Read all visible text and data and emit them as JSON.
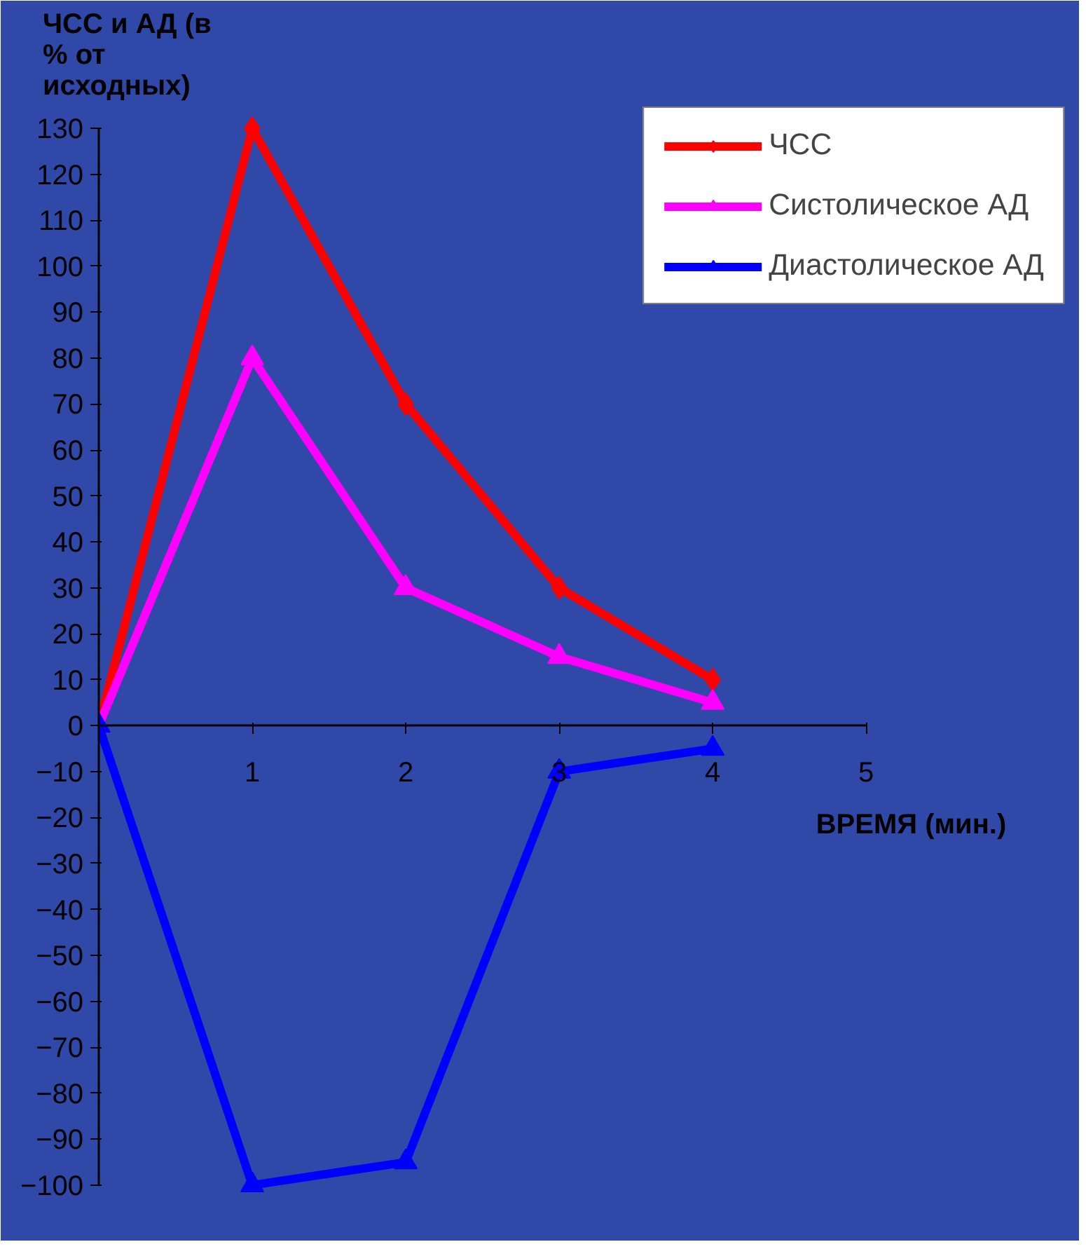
{
  "chart_data": {
    "type": "line",
    "ylabel": "ЧСС и АД (в % от исходных)",
    "xlabel": "ВРЕМЯ (мин.)",
    "x": [
      0,
      1,
      2,
      3,
      4
    ],
    "xlim": [
      0,
      5
    ],
    "xticks": [
      1,
      2,
      3,
      4,
      5
    ],
    "ylim": [
      -100,
      130
    ],
    "yticks": [
      -100,
      -90,
      -80,
      -70,
      -60,
      -50,
      -40,
      -30,
      -20,
      -10,
      0,
      10,
      20,
      30,
      40,
      50,
      60,
      70,
      80,
      90,
      100,
      110,
      120,
      130
    ],
    "series": [
      {
        "name": "ЧСС",
        "color": "#ff0000",
        "marker": "diamond",
        "values": [
          0,
          130,
          70,
          30,
          10
        ]
      },
      {
        "name": "Систолическое АД",
        "color": "#ff00ff",
        "marker": "triangle",
        "values": [
          0,
          80,
          30,
          15,
          5
        ]
      },
      {
        "name": "Диастолическое АД",
        "color": "#0000ff",
        "marker": "triangle",
        "values": [
          0,
          -100,
          -95,
          -10,
          -5
        ]
      }
    ],
    "grid": false,
    "legend": "top right"
  }
}
